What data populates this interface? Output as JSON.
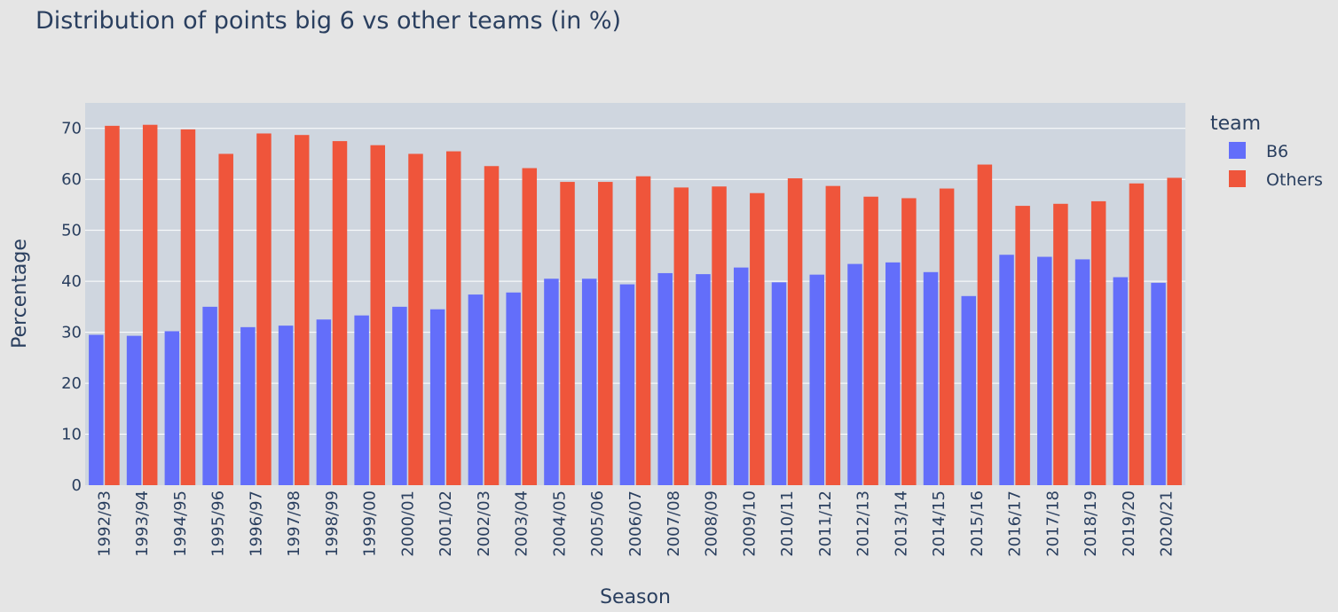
{
  "chart_data": {
    "type": "bar",
    "title": "Distribution of points big 6 vs other teams (in %)",
    "xlabel": "Season",
    "ylabel": "Percentage",
    "ylim": [
      0,
      75
    ],
    "yticks": [
      "0",
      "10",
      "20",
      "30",
      "40",
      "50",
      "60",
      "70"
    ],
    "grid": true,
    "legend": {
      "title": "team",
      "placement": "right"
    },
    "categories": [
      "1992/93",
      "1993/94",
      "1994/95",
      "1995/96",
      "1996/97",
      "1997/98",
      "1998/99",
      "1999/00",
      "2000/01",
      "2001/02",
      "2002/03",
      "2003/04",
      "2004/05",
      "2005/06",
      "2006/07",
      "2007/08",
      "2008/09",
      "2009/10",
      "2010/11",
      "2011/12",
      "2012/13",
      "2013/14",
      "2014/15",
      "2015/16",
      "2016/17",
      "2017/18",
      "2018/19",
      "2019/20",
      "2020/21"
    ],
    "series": [
      {
        "name": "B6",
        "color": "#636efa",
        "values": [
          29.5,
          29.3,
          30.2,
          35.0,
          31.0,
          31.3,
          32.5,
          33.3,
          35.0,
          34.5,
          37.4,
          37.8,
          40.5,
          40.5,
          39.4,
          41.6,
          41.4,
          42.7,
          39.8,
          41.3,
          43.4,
          43.7,
          41.8,
          37.1,
          45.2,
          44.8,
          44.3,
          40.8,
          39.7
        ]
      },
      {
        "name": "Others",
        "color": "#ef553b",
        "values": [
          70.5,
          70.7,
          69.8,
          65.0,
          69.0,
          68.7,
          67.5,
          66.7,
          65.0,
          65.5,
          62.6,
          62.2,
          59.5,
          59.5,
          60.6,
          58.4,
          58.6,
          57.3,
          60.2,
          58.7,
          56.6,
          56.3,
          58.2,
          62.9,
          54.8,
          55.2,
          55.7,
          59.2,
          60.3
        ]
      }
    ]
  }
}
